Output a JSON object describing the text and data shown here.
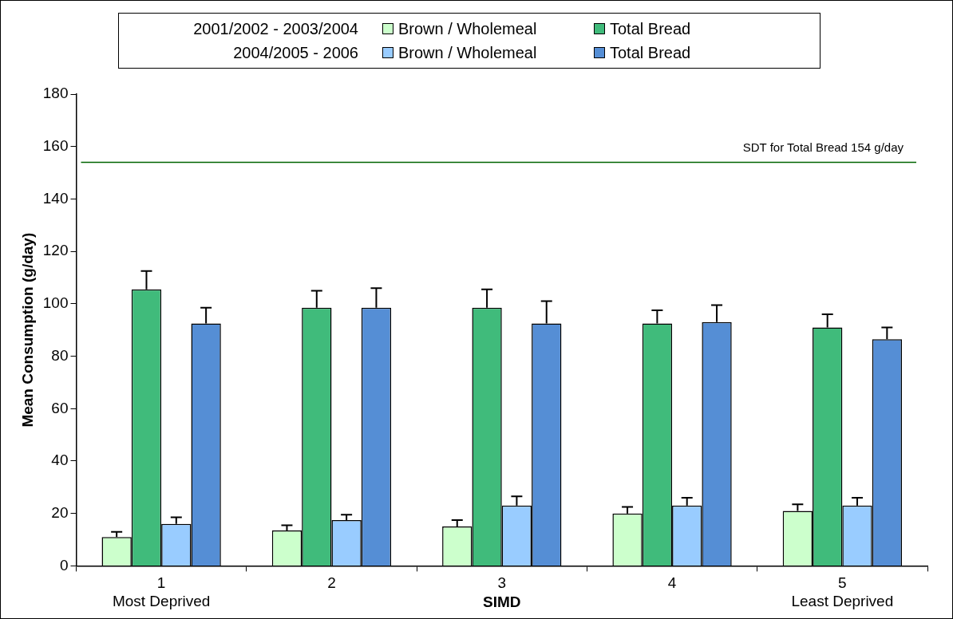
{
  "chart_data": {
    "type": "bar",
    "xlabel": "SIMD",
    "ylabel": "Mean Consumption (g/day)",
    "categories": [
      "1\nMost Deprived",
      "2",
      "3",
      "4",
      "5\nLeast Deprived"
    ],
    "series": [
      {
        "name": "Brown / Wholemeal",
        "color": "#ccffcc",
        "values": [
          11,
          13.5,
          15,
          20,
          21
        ],
        "errors": [
          [
            11,
            13
          ],
          [
            13.5,
            15.5
          ],
          [
            15,
            17.5
          ],
          [
            20,
            22.5
          ],
          [
            21,
            23.5
          ]
        ]
      },
      {
        "name": "Total Bread",
        "color": "#40bb7b",
        "values": [
          105.5,
          98.5,
          98.5,
          92.5,
          91
        ],
        "errors": [
          [
            105.5,
            112.5
          ],
          [
            98.5,
            105
          ],
          [
            98.5,
            105.5
          ],
          [
            92.5,
            97.5
          ],
          [
            91,
            96
          ]
        ]
      },
      {
        "name": "Brown / Wholemeal",
        "color": "#99ccff",
        "values": [
          16,
          17.5,
          23,
          23,
          23
        ],
        "errors": [
          [
            16,
            18.5
          ],
          [
            17.5,
            19.5
          ],
          [
            23,
            26.5
          ],
          [
            23,
            26
          ],
          [
            23,
            26
          ]
        ]
      },
      {
        "name": "Total Bread",
        "color": "#558ed5",
        "values": [
          92.5,
          98.5,
          92.5,
          93,
          86.5
        ],
        "errors": [
          [
            92.5,
            98.5
          ],
          [
            98.5,
            106
          ],
          [
            92.5,
            101
          ],
          [
            93,
            99.5
          ],
          [
            86.5,
            91
          ]
        ]
      }
    ],
    "ylim": [
      0,
      180
    ],
    "yticks": [
      0,
      20,
      40,
      60,
      80,
      100,
      120,
      140,
      160,
      180
    ],
    "grid": false,
    "legend": "top",
    "ref_lines": [
      {
        "axis": "y",
        "value": 154,
        "label": "SDT for Total Bread 154 g/day",
        "color": "#006400"
      }
    ],
    "annotations": [
      "2001/2002 - 2003/2004",
      "2004/2005 - 2006"
    ]
  }
}
